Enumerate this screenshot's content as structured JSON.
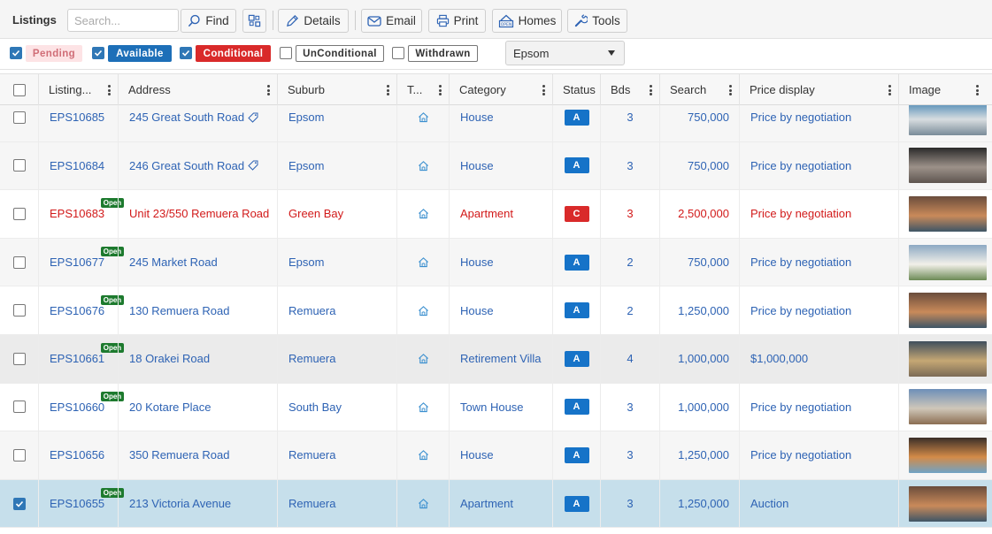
{
  "toolbar": {
    "title": "Listings",
    "search_placeholder": "Search...",
    "find_label": "Find",
    "details_label": "Details",
    "email_label": "Email",
    "print_label": "Print",
    "homes_label": "Homes",
    "tools_label": "Tools"
  },
  "filters": {
    "pending": {
      "label": "Pending",
      "checked": true
    },
    "available": {
      "label": "Available",
      "checked": true
    },
    "conditional": {
      "label": "Conditional",
      "checked": true
    },
    "unconditional": {
      "label": "UnConditional",
      "checked": false
    },
    "withdrawn": {
      "label": "Withdrawn",
      "checked": false
    },
    "office_select": "Epsom"
  },
  "colors": {
    "accent_blue": "#2e63b4",
    "status_available": "#1673c8",
    "status_conditional": "#d92a2a",
    "open_badge": "#1d7a2e",
    "selected_row": "#c6dfeb"
  },
  "grid": {
    "columns": [
      "Listing...",
      "Address",
      "Suburb",
      "T...",
      "Category",
      "Status",
      "Bds",
      "Search",
      "Price display",
      "Image"
    ],
    "rows": [
      {
        "id": "EPS10685",
        "address": "245 Great South Road",
        "tag": true,
        "open": false,
        "suburb": "Epsom",
        "category": "House",
        "status": "A",
        "bds": "3",
        "search": "750,000",
        "price": "Price by negotiation",
        "checked": false,
        "style": "odd"
      },
      {
        "id": "EPS10684",
        "address": "246 Great South Road",
        "tag": true,
        "open": false,
        "suburb": "Epsom",
        "category": "House",
        "status": "A",
        "bds": "3",
        "search": "750,000",
        "price": "Price by negotiation",
        "checked": false,
        "style": "odd"
      },
      {
        "id": "EPS10683",
        "address": "Unit 23/550 Remuera Road",
        "tag": false,
        "open": true,
        "open_label": "Open",
        "suburb": "Green Bay",
        "category": "Apartment",
        "status": "C",
        "bds": "3",
        "search": "2,500,000",
        "price": "Price by negotiation",
        "checked": false,
        "style": "even red"
      },
      {
        "id": "EPS10677",
        "address": "245 Market Road",
        "tag": false,
        "open": true,
        "open_label": "Open",
        "suburb": "Epsom",
        "category": "House",
        "status": "A",
        "bds": "2",
        "search": "750,000",
        "price": "Price by negotiation",
        "checked": false,
        "style": "odd"
      },
      {
        "id": "EPS10676",
        "address": "130 Remuera Road",
        "tag": false,
        "open": true,
        "open_label": "Open",
        "suburb": "Remuera",
        "category": "House",
        "status": "A",
        "bds": "2",
        "search": "1,250,000",
        "price": "Price by negotiation",
        "checked": false,
        "style": "even"
      },
      {
        "id": "EPS10661",
        "address": "18 Orakei Road",
        "tag": false,
        "open": true,
        "open_label": "Open",
        "suburb": "Remuera",
        "category": "Retirement Villa",
        "status": "A",
        "bds": "4",
        "search": "1,000,000",
        "price": "$1,000,000",
        "checked": false,
        "style": "hover"
      },
      {
        "id": "EPS10660",
        "address": "20 Kotare Place",
        "tag": false,
        "open": true,
        "open_label": "Open",
        "suburb": "South Bay",
        "category": "Town House",
        "status": "A",
        "bds": "3",
        "search": "1,000,000",
        "price": "Price by negotiation",
        "checked": false,
        "style": "even"
      },
      {
        "id": "EPS10656",
        "address": "350 Remuera Road",
        "tag": false,
        "open": false,
        "suburb": "Remuera",
        "category": "House",
        "status": "A",
        "bds": "3",
        "search": "1,250,000",
        "price": "Price by negotiation",
        "checked": false,
        "style": "odd"
      },
      {
        "id": "EPS10655",
        "address": "213 Victoria Avenue",
        "tag": false,
        "open": true,
        "open_label": "Open",
        "suburb": "Remuera",
        "category": "Apartment",
        "status": "A",
        "bds": "3",
        "search": "1,250,000",
        "price": "Auction",
        "checked": true,
        "style": "sel"
      }
    ]
  }
}
